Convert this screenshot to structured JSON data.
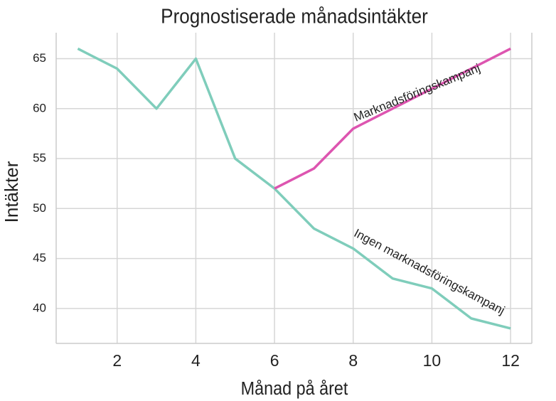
{
  "chart_data": {
    "type": "line",
    "title": "Prognostiserade månadsintäkter",
    "x_label": "Månad på året",
    "y_label": "Intäkter",
    "series": [
      {
        "name": "Ingen marknadsföringskampanj",
        "color": "#7fcdbb",
        "x": [
          1,
          2,
          3,
          4,
          5,
          6,
          7,
          8,
          9,
          10,
          11,
          12
        ],
        "values": [
          66,
          64,
          60,
          65,
          55,
          52,
          48,
          46,
          43,
          42,
          39,
          38
        ]
      },
      {
        "name": "Marknadsföringskampanj",
        "color": "#dd55b0",
        "x": [
          6,
          7,
          8,
          9,
          10,
          11,
          12
        ],
        "values": [
          52,
          54,
          58,
          60,
          62,
          64,
          66
        ]
      }
    ],
    "xlim": [
      0.45,
      12.54
    ],
    "ylim": [
      36.5,
      67.6
    ],
    "xticks": [
      2,
      4,
      6,
      8,
      10,
      12
    ],
    "yticks": [
      40,
      45,
      50,
      55,
      60,
      65
    ],
    "grid": true
  }
}
